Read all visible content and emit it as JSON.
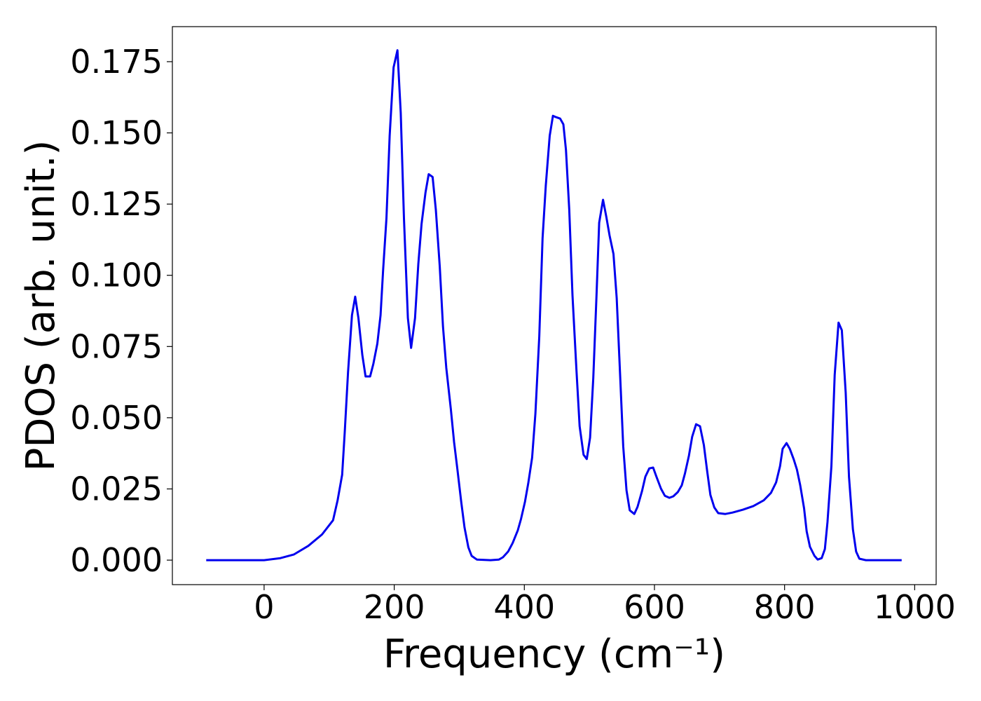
{
  "chart_data": {
    "type": "line",
    "xlabel": "Frequency (cm⁻¹)",
    "ylabel": "PDOS (arb. unit.)",
    "color": "#0000ee",
    "x": [
      -89,
      0,
      25,
      46,
      68,
      89,
      106,
      113,
      120,
      124,
      129,
      135,
      140,
      145,
      151,
      156,
      163,
      168,
      174,
      179,
      183,
      188,
      193,
      199,
      205,
      210,
      215,
      221,
      226,
      232,
      237,
      242,
      248,
      253,
      259,
      264,
      270,
      275,
      280,
      287,
      292,
      297,
      303,
      308,
      314,
      319,
      327,
      348,
      361,
      367,
      375,
      382,
      390,
      395,
      401,
      406,
      412,
      417,
      423,
      428,
      433,
      439,
      444,
      449,
      455,
      460,
      464,
      469,
      474,
      480,
      485,
      491,
      496,
      501,
      506,
      511,
      515,
      521,
      526,
      531,
      537,
      542,
      547,
      552,
      557,
      562,
      569,
      574,
      581,
      586,
      592,
      598,
      603,
      610,
      616,
      623,
      629,
      636,
      642,
      647,
      653,
      658,
      664,
      670,
      676,
      681,
      686,
      692,
      698,
      709,
      720,
      736,
      752,
      768,
      779,
      787,
      793,
      797,
      803,
      808,
      814,
      819,
      824,
      830,
      834,
      839,
      846,
      851,
      857,
      862,
      866,
      872,
      877,
      883,
      888,
      894,
      899,
      905,
      910,
      915,
      925,
      980
    ],
    "values": [
      0,
      0,
      0.0007,
      0.002,
      0.005,
      0.009,
      0.014,
      0.021,
      0.03,
      0.045,
      0.066,
      0.086,
      0.0925,
      0.085,
      0.072,
      0.0645,
      0.0645,
      0.069,
      0.076,
      0.086,
      0.102,
      0.12,
      0.149,
      0.173,
      0.179,
      0.157,
      0.12,
      0.085,
      0.0745,
      0.085,
      0.104,
      0.118,
      0.129,
      0.1355,
      0.1345,
      0.123,
      0.103,
      0.082,
      0.0675,
      0.053,
      0.0415,
      0.032,
      0.0205,
      0.0115,
      0.0045,
      0.0015,
      0.0002,
      0,
      0.0002,
      0.001,
      0.003,
      0.006,
      0.0105,
      0.0145,
      0.0205,
      0.027,
      0.036,
      0.0515,
      0.0785,
      0.113,
      0.1315,
      0.149,
      0.156,
      0.1555,
      0.155,
      0.153,
      0.144,
      0.123,
      0.093,
      0.067,
      0.047,
      0.037,
      0.0355,
      0.043,
      0.064,
      0.093,
      0.1185,
      0.1265,
      0.1205,
      0.114,
      0.1075,
      0.092,
      0.066,
      0.04,
      0.0245,
      0.0175,
      0.0162,
      0.0187,
      0.0243,
      0.0293,
      0.0322,
      0.0325,
      0.0293,
      0.0251,
      0.0226,
      0.0219,
      0.0224,
      0.0239,
      0.0263,
      0.0305,
      0.0367,
      0.0433,
      0.0477,
      0.047,
      0.0404,
      0.0313,
      0.0229,
      0.0185,
      0.0165,
      0.0162,
      0.0167,
      0.0177,
      0.019,
      0.021,
      0.0236,
      0.0273,
      0.033,
      0.0391,
      0.0411,
      0.0391,
      0.0354,
      0.0318,
      0.0263,
      0.0182,
      0.0101,
      0.0047,
      0.0015,
      0.0002,
      0.0007,
      0.0039,
      0.0133,
      0.033,
      0.065,
      0.0834,
      0.0807,
      0.0588,
      0.0293,
      0.0108,
      0.003,
      0.0005,
      0,
      0
    ],
    "xlim": [
      -141,
      1033
    ],
    "ylim": [
      -0.0086,
      0.1873
    ],
    "xticks": [
      0,
      200,
      400,
      600,
      800,
      1000
    ],
    "yticks": [
      {
        "value": 0,
        "label": "0.000"
      },
      {
        "value": 0.025,
        "label": "0.025"
      },
      {
        "value": 0.05,
        "label": "0.050"
      },
      {
        "value": 0.075,
        "label": "0.075"
      },
      {
        "value": 0.1,
        "label": "0.100"
      },
      {
        "value": 0.125,
        "label": "0.125"
      },
      {
        "value": 0.15,
        "label": "0.150"
      },
      {
        "value": 0.175,
        "label": "0.175"
      }
    ]
  }
}
